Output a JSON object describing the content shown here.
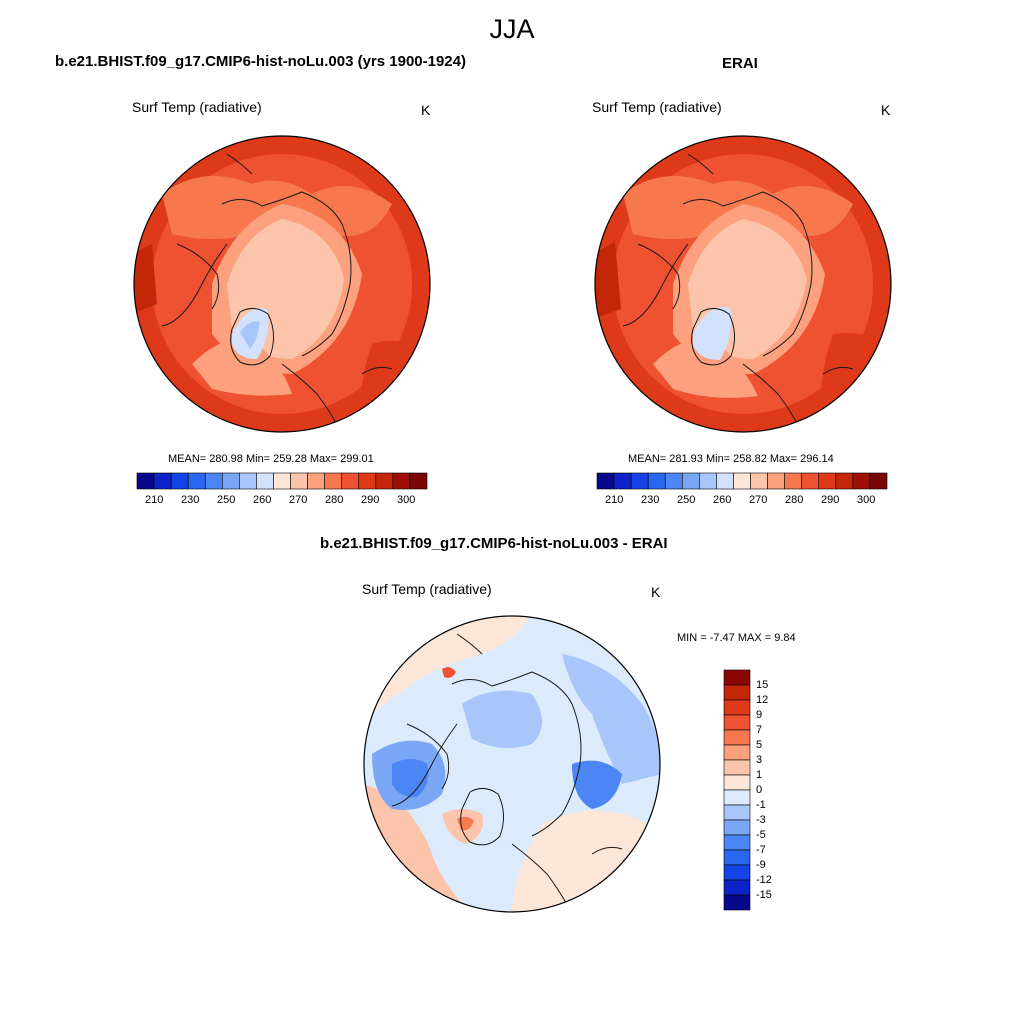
{
  "figure": {
    "title": "JJA"
  },
  "colors": {
    "outline": "#000000",
    "coast": "#1a1a1a",
    "ocean_fill": "#ef5a38",
    "abs_scale": [
      "#08088c",
      "#0c24c8",
      "#1444e8",
      "#2a66f0",
      "#4c86f4",
      "#7aa6f6",
      "#a8c6fa",
      "#d2e2fc",
      "#fce6d8",
      "#fcc4aa",
      "#fca07e",
      "#f8784e",
      "#ee5230",
      "#de3a1a",
      "#c42608",
      "#9e1006",
      "#7a0606"
    ],
    "diff_scale": [
      "#08088c",
      "#0c24c8",
      "#1444e8",
      "#2a66f0",
      "#4c86f4",
      "#7aa6f6",
      "#a8c6fa",
      "#dcebfc",
      "#fce6d8",
      "#fcc4aa",
      "#fca07e",
      "#f8784e",
      "#ee5230",
      "#de3a1a",
      "#c42608",
      "#8c0606"
    ]
  },
  "panels": [
    {
      "id": "model",
      "title": "b.e21.BHIST.f09_g17.CMIP6-hist-noLu.003 (yrs 1900-1924)",
      "variable": "Surf Temp (radiative)",
      "units": "K",
      "stats": "MEAN= 280.98  Min= 259.28  Max= 299.01",
      "colorbar_labels": [
        "210",
        "230",
        "250",
        "260",
        "270",
        "280",
        "290",
        "300"
      ]
    },
    {
      "id": "obs",
      "title": "ERAI",
      "variable": "Surf Temp (radiative)",
      "units": "K",
      "stats": "MEAN= 281.93  Min= 258.82  Max= 296.14",
      "colorbar_labels": [
        "210",
        "230",
        "250",
        "260",
        "270",
        "280",
        "290",
        "300"
      ]
    },
    {
      "id": "diff",
      "title": "b.e21.BHIST.f09_g17.CMIP6-hist-noLu.003 - ERAI",
      "variable": "Surf Temp (radiative)",
      "units": "K",
      "stats": "MIN =  -7.47 MAX =   9.84",
      "colorbar_labels": [
        "15",
        "12",
        "9",
        "7",
        "5",
        "3",
        "1",
        "0",
        "-1",
        "-3",
        "-5",
        "-7",
        "-9",
        "-12",
        "-15"
      ]
    }
  ]
}
